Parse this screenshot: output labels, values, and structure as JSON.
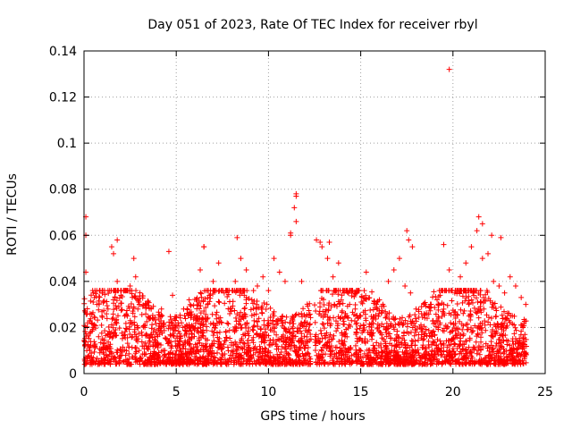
{
  "chart_data": {
    "type": "scatter",
    "title": "Day 051 of 2023, Rate Of TEC Index for receiver rbyl",
    "xlabel": "GPS time / hours",
    "ylabel": "ROTI / TECUs",
    "xlim": [
      0,
      25
    ],
    "ylim": [
      0,
      0.14
    ],
    "xticks": [
      0,
      5,
      10,
      15,
      20,
      25
    ],
    "yticks": [
      0,
      0.02,
      0.04,
      0.06,
      0.08,
      0.1,
      0.12,
      0.14
    ],
    "xtick_labels": [
      "0",
      "5",
      "10",
      "15",
      "20",
      "25"
    ],
    "ytick_labels": [
      "0",
      "0.02",
      "0.04",
      "0.06",
      "0.08",
      "0.1",
      "0.12",
      "0.14"
    ],
    "grid": true,
    "marker": "+",
    "colors": {
      "series": "#ff0000",
      "grid": "#a0a0a0",
      "frame": "#000000"
    },
    "series": [
      {
        "name": "ROTI",
        "x": [
          0.05,
          0.1,
          0.2,
          0.35,
          0.5,
          0.7,
          1.0,
          1.3,
          1.6,
          1.8,
          2.0,
          2.2,
          2.5,
          2.8,
          3.0,
          3.3,
          3.6,
          3.9,
          4.2,
          4.5,
          4.8,
          5.1,
          5.4,
          5.7,
          6.0,
          6.3,
          6.5,
          6.7,
          7.0,
          7.3,
          7.6,
          7.9,
          8.2,
          8.5,
          8.8,
          9.1,
          9.4,
          9.7,
          10.0,
          10.3,
          10.6,
          10.9,
          11.2,
          11.5,
          11.8,
          12.1,
          12.3,
          12.6,
          12.9,
          13.2,
          13.5,
          13.8,
          14.1,
          14.4,
          14.7,
          15.0,
          15.3,
          15.6,
          15.9,
          16.2,
          16.5,
          16.8,
          17.1,
          17.4,
          17.7,
          18.0,
          18.3,
          18.6,
          18.9,
          19.2,
          19.5,
          19.8,
          20.1,
          20.4,
          20.7,
          21.0,
          21.3,
          21.6,
          21.9,
          22.2,
          22.5,
          22.8,
          23.1,
          23.4,
          23.7,
          23.95,
          0.1,
          0.1,
          1.5,
          1.8,
          2.7,
          4.6,
          6.5,
          8.3,
          11.5,
          11.5,
          11.4,
          11.2,
          12.8,
          13.3,
          17.5,
          17.6,
          17.8,
          19.8,
          19.5,
          21.4,
          21.6,
          22.1,
          22.6,
          0.15,
          3.5,
          5.8,
          9.8,
          13.9,
          16.9,
          20.9,
          23.2
        ],
        "y": [
          0.012,
          0.044,
          0.022,
          0.018,
          0.02,
          0.03,
          0.035,
          0.028,
          0.052,
          0.04,
          0.034,
          0.025,
          0.038,
          0.042,
          0.03,
          0.02,
          0.024,
          0.018,
          0.028,
          0.015,
          0.034,
          0.022,
          0.028,
          0.032,
          0.025,
          0.045,
          0.055,
          0.03,
          0.04,
          0.048,
          0.035,
          0.026,
          0.04,
          0.05,
          0.045,
          0.032,
          0.038,
          0.042,
          0.036,
          0.05,
          0.044,
          0.04,
          0.06,
          0.066,
          0.04,
          0.022,
          0.015,
          0.058,
          0.055,
          0.05,
          0.042,
          0.048,
          0.035,
          0.03,
          0.028,
          0.025,
          0.044,
          0.022,
          0.028,
          0.03,
          0.04,
          0.045,
          0.05,
          0.038,
          0.035,
          0.028,
          0.026,
          0.024,
          0.018,
          0.02,
          0.03,
          0.045,
          0.035,
          0.042,
          0.048,
          0.055,
          0.062,
          0.05,
          0.052,
          0.04,
          0.038,
          0.035,
          0.042,
          0.038,
          0.033,
          0.03,
          0.068,
          0.06,
          0.055,
          0.058,
          0.05,
          0.053,
          0.055,
          0.059,
          0.078,
          0.077,
          0.072,
          0.061,
          0.057,
          0.057,
          0.062,
          0.058,
          0.055,
          0.132,
          0.056,
          0.068,
          0.065,
          0.06,
          0.059,
          0.01,
          0.012,
          0.009,
          0.011,
          0.01,
          0.012,
          0.009,
          0.011
        ]
      }
    ],
    "dense_band": {
      "y_min": 0.004,
      "y_max": 0.03,
      "description": "dense cloud of points across the full 0–24 h range"
    }
  }
}
